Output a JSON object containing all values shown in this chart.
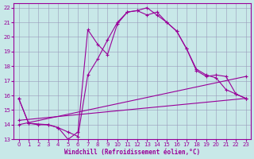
{
  "xlabel": "Windchill (Refroidissement éolien,°C)",
  "bg_color": "#c8e8e8",
  "line_color": "#990099",
  "grid_color": "#9999bb",
  "xlim": [
    -0.5,
    23.5
  ],
  "ylim": [
    13,
    22.3
  ],
  "xticks": [
    0,
    1,
    2,
    3,
    4,
    5,
    6,
    7,
    8,
    9,
    10,
    11,
    12,
    13,
    14,
    15,
    16,
    17,
    18,
    19,
    20,
    21,
    22,
    23
  ],
  "yticks": [
    13,
    14,
    15,
    16,
    17,
    18,
    19,
    20,
    21,
    22
  ],
  "line1_x": [
    0,
    1,
    2,
    3,
    4,
    5,
    6,
    7,
    8,
    9,
    10,
    11,
    12,
    13,
    14,
    15,
    16,
    17,
    18,
    19,
    20,
    21,
    22,
    23
  ],
  "line1_y": [
    15.8,
    14.1,
    14.0,
    14.0,
    13.8,
    13.0,
    13.5,
    20.5,
    19.5,
    18.8,
    20.9,
    21.7,
    21.8,
    21.5,
    21.7,
    21.0,
    20.4,
    19.2,
    17.7,
    17.3,
    17.4,
    17.3,
    16.1,
    15.8
  ],
  "line2_x": [
    0,
    1,
    3,
    4,
    5,
    6,
    7,
    8,
    9,
    10,
    11,
    12,
    13,
    14,
    15,
    16,
    17,
    18,
    19,
    20,
    21,
    22,
    23
  ],
  "line2_y": [
    15.8,
    14.1,
    14.0,
    13.8,
    13.5,
    13.2,
    17.4,
    18.5,
    19.8,
    21.0,
    21.7,
    21.8,
    22.0,
    21.5,
    21.0,
    20.4,
    19.2,
    17.8,
    17.4,
    17.2,
    16.4,
    16.1,
    15.8
  ],
  "line3_x": [
    0,
    23
  ],
  "line3_y": [
    14.0,
    17.3
  ],
  "line4_x": [
    0,
    23
  ],
  "line4_y": [
    14.3,
    15.8
  ]
}
